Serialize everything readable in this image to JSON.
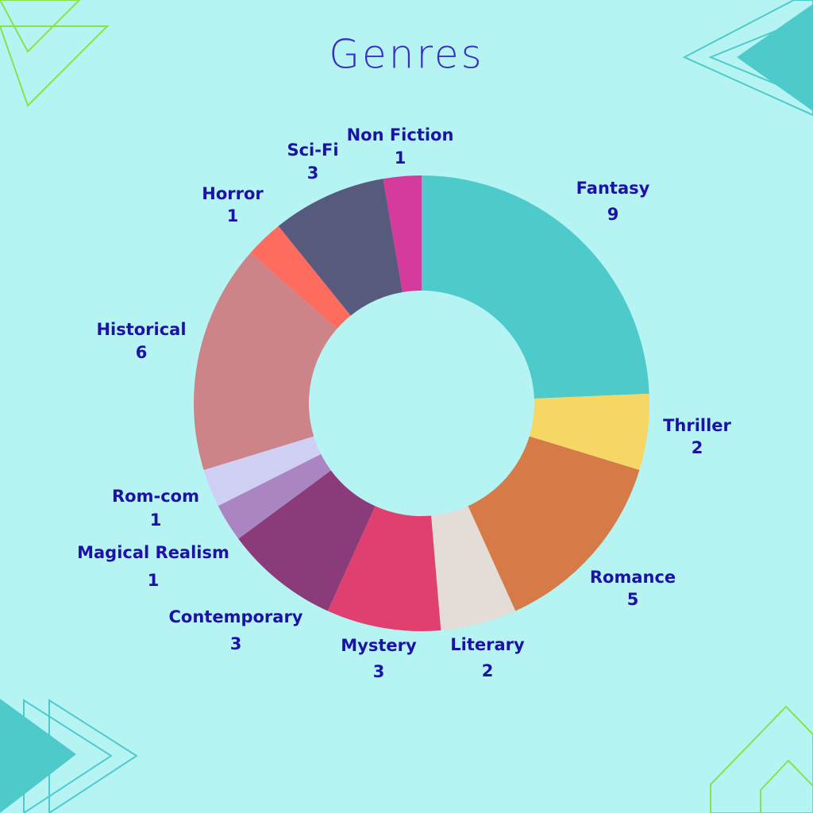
{
  "chart_data": {
    "type": "donut",
    "title": "Genres",
    "categories": [
      "Fantasy",
      "Thriller",
      "Romance",
      "Literary",
      "Mystery",
      "Contemporary",
      "Magical Realism",
      "Rom-com",
      "Historical",
      "Horror",
      "Sci-Fi",
      "Non Fiction"
    ],
    "values": [
      9,
      2,
      5,
      2,
      3,
      3,
      1,
      1,
      6,
      1,
      3,
      1
    ],
    "colors": [
      "#4ecacb",
      "#f6d765",
      "#d67a47",
      "#e3dcd7",
      "#e0406f",
      "#8b3a7a",
      "#ab85c2",
      "#d0d0f5",
      "#cc8488",
      "#fe6b5f",
      "#575a7c",
      "#d43b9c"
    ]
  }
}
